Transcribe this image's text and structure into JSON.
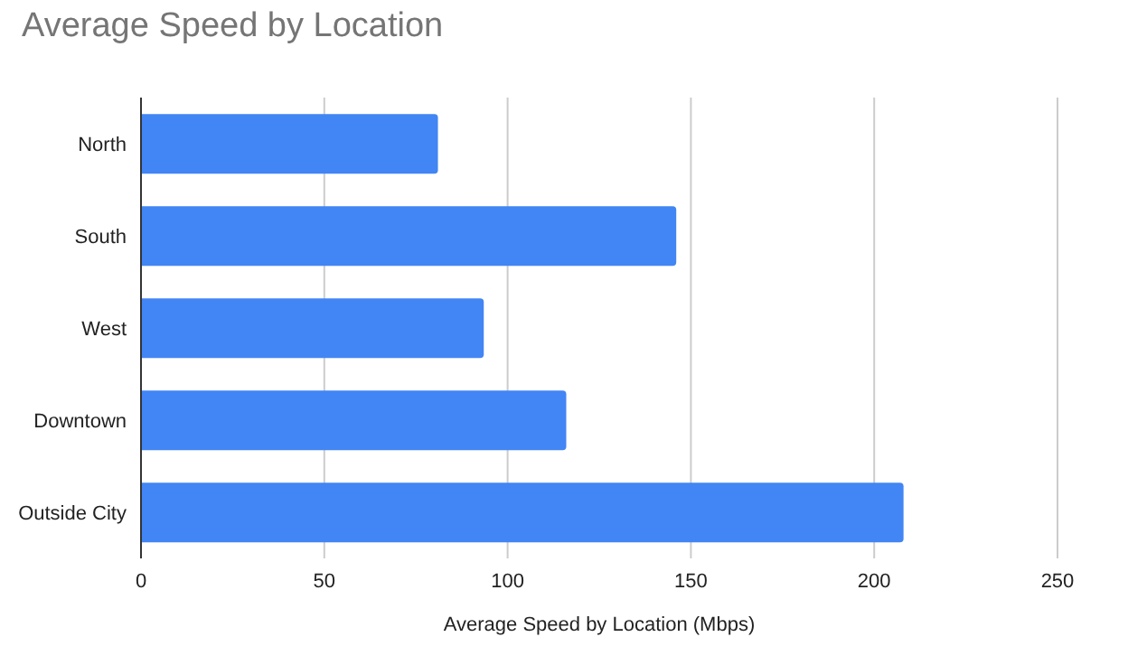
{
  "chart_data": {
    "type": "bar",
    "orientation": "horizontal",
    "title": "Average Speed by Location",
    "xlabel": "Average Speed by Location (Mbps)",
    "categories": [
      "North",
      "South",
      "West",
      "Downtown",
      "Outside City"
    ],
    "values": [
      81,
      146,
      93.5,
      116,
      208
    ],
    "color": "#4285f4",
    "xlim": [
      0,
      250
    ],
    "xticks": [
      0,
      50,
      100,
      150,
      200,
      250
    ],
    "grid": "x"
  }
}
